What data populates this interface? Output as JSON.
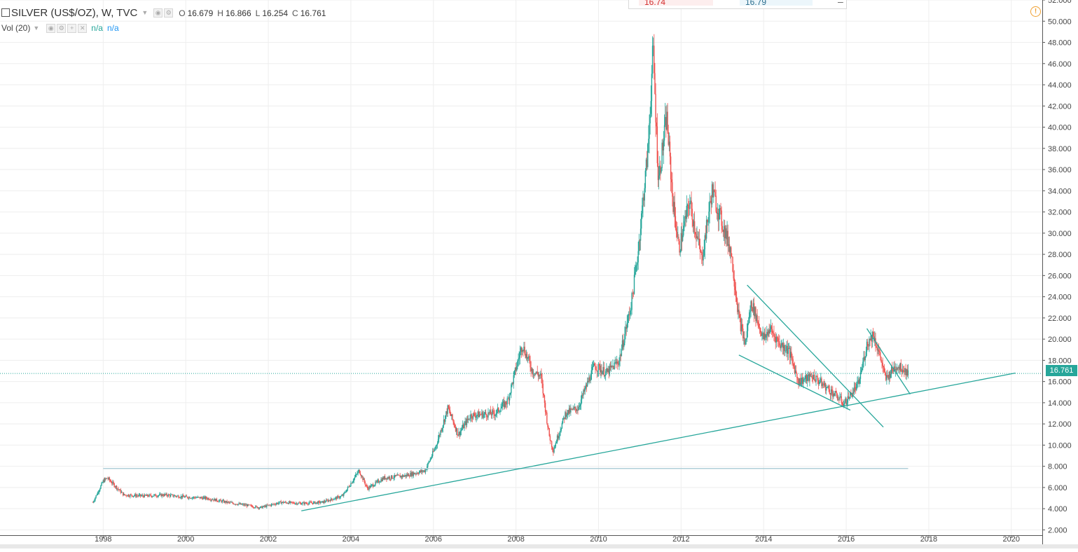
{
  "legend": {
    "symbol": "SILVER (US$/OZ), W, TVC",
    "ohlc": [
      {
        "k": "O",
        "v": "16.679"
      },
      {
        "k": "H",
        "v": "16.866"
      },
      {
        "k": "L",
        "v": "16.254"
      },
      {
        "k": "C",
        "v": "16.761"
      }
    ],
    "vol_label": "Vol (20)",
    "vol_val1": "n/a",
    "vol_val2": "n/a"
  },
  "top_widget": {
    "sell": "16.74",
    "buy": "16.79"
  },
  "price_tag": "16.761",
  "colors": {
    "up": "#26a69a",
    "down": "#ef5350",
    "line": "#26a69a",
    "grid": "#eeeeee",
    "axis_text": "#444444",
    "hline": "#b0cfd8"
  },
  "chart_data": {
    "type": "candlestick",
    "x_axis": {
      "range": [
        1995.5,
        2020.75
      ],
      "ticks": [
        "1998",
        "2000",
        "2002",
        "2004",
        "2006",
        "2008",
        "2010",
        "2012",
        "2014",
        "2016",
        "2018",
        "2020"
      ]
    },
    "y_axis": {
      "range": [
        1.5,
        52.0
      ],
      "ticks": [
        "2.000",
        "4.000",
        "6.000",
        "8.000",
        "10.000",
        "12.000",
        "14.000",
        "16.000",
        "18.000",
        "20.000",
        "22.000",
        "24.000",
        "26.000",
        "28.000",
        "30.000",
        "32.000",
        "34.000",
        "36.000",
        "38.000",
        "40.000",
        "42.000",
        "44.000",
        "46.000",
        "48.000",
        "50.000",
        "52.000"
      ]
    },
    "last_price": 16.761,
    "price_path": [
      [
        1997.75,
        4.6
      ],
      [
        1998.0,
        6.6
      ],
      [
        1998.1,
        6.9
      ],
      [
        1998.5,
        5.3
      ],
      [
        1999.0,
        5.2
      ],
      [
        1999.5,
        5.3
      ],
      [
        2000.0,
        5.1
      ],
      [
        2000.5,
        5.0
      ],
      [
        2001.0,
        4.6
      ],
      [
        2001.5,
        4.3
      ],
      [
        2001.8,
        4.1
      ],
      [
        2002.3,
        4.6
      ],
      [
        2002.8,
        4.5
      ],
      [
        2003.3,
        4.6
      ],
      [
        2003.8,
        5.2
      ],
      [
        2004.2,
        7.6
      ],
      [
        2004.4,
        5.9
      ],
      [
        2004.8,
        6.9
      ],
      [
        2005.3,
        7.1
      ],
      [
        2005.8,
        7.6
      ],
      [
        2006.05,
        9.8
      ],
      [
        2006.35,
        13.5
      ],
      [
        2006.6,
        11.0
      ],
      [
        2006.9,
        12.8
      ],
      [
        2007.5,
        13.0
      ],
      [
        2007.8,
        14.2
      ],
      [
        2008.15,
        19.5
      ],
      [
        2008.4,
        17.0
      ],
      [
        2008.6,
        16.5
      ],
      [
        2008.8,
        11.0
      ],
      [
        2008.9,
        9.5
      ],
      [
        2009.2,
        13.0
      ],
      [
        2009.5,
        13.5
      ],
      [
        2009.9,
        17.5
      ],
      [
        2010.2,
        16.8
      ],
      [
        2010.5,
        18.0
      ],
      [
        2010.8,
        23.5
      ],
      [
        2010.95,
        28.0
      ],
      [
        2011.2,
        38.0
      ],
      [
        2011.32,
        47.5
      ],
      [
        2011.45,
        35.0
      ],
      [
        2011.65,
        41.0
      ],
      [
        2011.8,
        33.0
      ],
      [
        2011.95,
        28.5
      ],
      [
        2012.2,
        33.0
      ],
      [
        2012.5,
        27.5
      ],
      [
        2012.75,
        34.0
      ],
      [
        2012.95,
        31.5
      ],
      [
        2013.2,
        28.5
      ],
      [
        2013.4,
        22.0
      ],
      [
        2013.55,
        19.5
      ],
      [
        2013.7,
        23.5
      ],
      [
        2014.0,
        20.0
      ],
      [
        2014.15,
        21.0
      ],
      [
        2014.4,
        19.5
      ],
      [
        2014.6,
        19.0
      ],
      [
        2014.85,
        16.0
      ],
      [
        2015.2,
        16.5
      ],
      [
        2015.5,
        15.5
      ],
      [
        2015.8,
        14.5
      ],
      [
        2015.95,
        13.9
      ],
      [
        2016.3,
        15.8
      ],
      [
        2016.5,
        19.5
      ],
      [
        2016.65,
        20.5
      ],
      [
        2016.85,
        18.0
      ],
      [
        2016.95,
        16.2
      ],
      [
        2017.2,
        17.5
      ],
      [
        2017.4,
        17.2
      ],
      [
        2017.5,
        16.76
      ]
    ],
    "annotations": {
      "long_support": {
        "from": [
          2002.8,
          3.8
        ],
        "to": [
          2020.1,
          16.8
        ]
      },
      "horizontal": {
        "from": [
          1998.0,
          7.8
        ],
        "to": [
          2017.5,
          7.8
        ]
      },
      "wedge_upper": {
        "from": [
          2013.6,
          25.1
        ],
        "to": [
          2016.9,
          11.7
        ]
      },
      "wedge_lower": {
        "from": [
          2013.4,
          18.5
        ],
        "to": [
          2016.1,
          13.3
        ]
      },
      "small_upper": {
        "from": [
          2016.5,
          21.0
        ],
        "to": [
          2017.55,
          14.8
        ]
      }
    }
  }
}
